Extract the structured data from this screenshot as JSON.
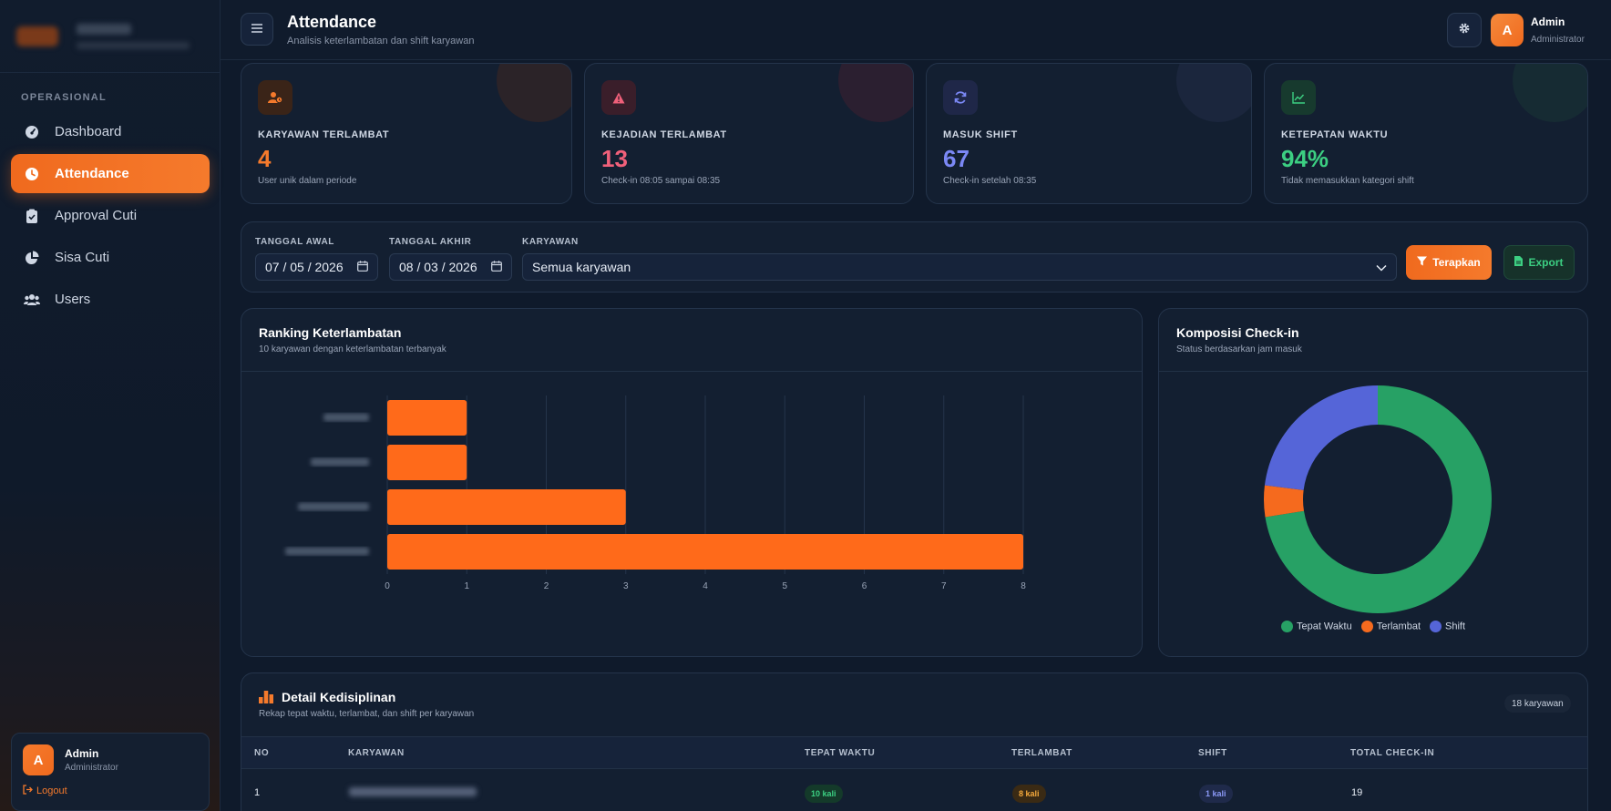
{
  "sidebar": {
    "section_label": "OPERASIONAL",
    "items": [
      {
        "label": "Dashboard",
        "icon": "gauge-icon"
      },
      {
        "label": "Attendance",
        "icon": "clock-icon",
        "active": true
      },
      {
        "label": "Approval Cuti",
        "icon": "clipboard-check-icon"
      },
      {
        "label": "Sisa Cuti",
        "icon": "pie-chart-icon"
      },
      {
        "label": "Users",
        "icon": "users-icon"
      }
    ],
    "user": {
      "initial": "A",
      "name": "Admin",
      "role": "Administrator",
      "logout": "Logout"
    }
  },
  "header": {
    "title": "Attendance",
    "subtitle": "Analisis keterlambatan dan shift karyawan",
    "user": {
      "initial": "A",
      "name": "Admin",
      "role": "Administrator"
    }
  },
  "stats": [
    {
      "label": "KARYAWAN TERLAMBAT",
      "value": "4",
      "desc": "User unik dalam periode",
      "color": "#f57a2c",
      "icon": "user-clock-icon"
    },
    {
      "label": "KEJADIAN TERLAMBAT",
      "value": "13",
      "desc": "Check-in 08:05 sampai 08:35",
      "color": "#f0607a",
      "icon": "warning-icon"
    },
    {
      "label": "MASUK SHIFT",
      "value": "67",
      "desc": "Check-in setelah 08:35",
      "color": "#7b88f5",
      "icon": "refresh-icon"
    },
    {
      "label": "KETEPATAN WAKTU",
      "value": "94%",
      "desc": "Tidak memasukkan kategori shift",
      "color": "#3ccf82",
      "icon": "trend-up-icon"
    }
  ],
  "filter": {
    "start_label": "TANGGAL AWAL",
    "start_value": "07 / 05 / 2026",
    "end_label": "TANGGAL AKHIR",
    "end_value": "08 / 03 / 2026",
    "employee_label": "KARYAWAN",
    "employee_value": "Semua karyawan",
    "apply_label": "Terapkan",
    "export_label": "Export"
  },
  "ranking": {
    "title": "Ranking Keterlambatan",
    "subtitle": "10 karyawan dengan keterlambatan terbanyak"
  },
  "composition": {
    "title": "Komposisi Check-in",
    "subtitle": "Status berdasarkan jam masuk"
  },
  "chart_data": [
    {
      "type": "bar",
      "orientation": "horizontal",
      "categories": [
        "",
        "",
        "",
        ""
      ],
      "values": [
        1,
        1,
        3,
        8
      ],
      "xlim": [
        0,
        8
      ],
      "xticks": [
        0,
        1,
        2,
        3,
        4,
        5,
        6,
        7,
        8
      ],
      "color": "#ff6a1a",
      "grid": true
    },
    {
      "type": "pie",
      "donut": true,
      "labels": [
        "Tepat Waktu",
        "Terlambat",
        "Shift"
      ],
      "values": [
        211,
        13,
        67
      ],
      "colors": [
        "#27a165",
        "#f56a1e",
        "#5565d8"
      ],
      "legend": "bottom"
    }
  ],
  "table": {
    "title": "Detail Kedisiplinan",
    "subtitle": "Rekap tepat waktu, terlambat, dan shift per karyawan",
    "badge": "18 karyawan",
    "columns": [
      "NO",
      "KARYAWAN",
      "TEPAT WAKTU",
      "TERLAMBAT",
      "SHIFT",
      "TOTAL CHECK-IN"
    ],
    "rows": [
      {
        "no": "1",
        "on_time": "10 kali",
        "late": "8 kali",
        "shift": "1 kali",
        "total": "19"
      }
    ]
  }
}
